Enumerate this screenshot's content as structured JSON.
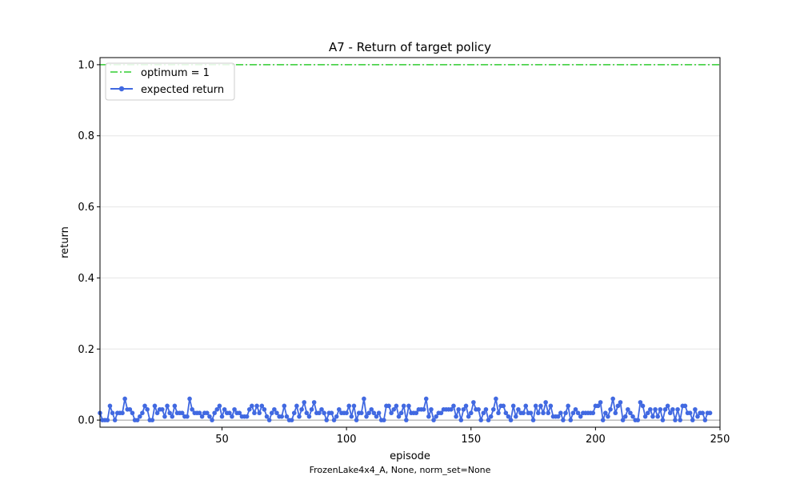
{
  "chart_data": {
    "type": "line",
    "title": "A7 - Return of target policy",
    "xlabel": "episode",
    "ylabel": "return",
    "footer": "FrozenLake4x4_A, None, norm_set=None",
    "xlim": [
      1,
      250
    ],
    "ylim": [
      -0.02,
      1.02
    ],
    "xticks": [
      50,
      100,
      150,
      200,
      250
    ],
    "yticks": [
      0.0,
      0.2,
      0.4,
      0.6,
      0.8,
      1.0
    ],
    "ytick_labels": [
      "0.0",
      "0.2",
      "0.4",
      "0.6",
      "0.8",
      "1.0"
    ],
    "grid": "horizontal",
    "legend_position": "top-left",
    "optimum": {
      "name": "optimum = 1",
      "value": 1.0,
      "color": "#32cd32",
      "style": "dash-dot"
    },
    "series": [
      {
        "name": "expected return",
        "color": "#4169e1",
        "x_start": 1,
        "values": [
          0.02,
          0.0,
          0.0,
          0.0,
          0.04,
          0.02,
          0.0,
          0.02,
          0.02,
          0.02,
          0.06,
          0.03,
          0.03,
          0.02,
          0.0,
          0.0,
          0.01,
          0.02,
          0.04,
          0.03,
          0.0,
          0.0,
          0.04,
          0.02,
          0.03,
          0.03,
          0.01,
          0.04,
          0.02,
          0.01,
          0.04,
          0.02,
          0.02,
          0.02,
          0.01,
          0.01,
          0.06,
          0.03,
          0.02,
          0.02,
          0.02,
          0.01,
          0.02,
          0.02,
          0.01,
          0.0,
          0.02,
          0.03,
          0.04,
          0.01,
          0.03,
          0.02,
          0.02,
          0.01,
          0.03,
          0.02,
          0.02,
          0.01,
          0.01,
          0.01,
          0.03,
          0.04,
          0.02,
          0.04,
          0.02,
          0.04,
          0.03,
          0.01,
          0.0,
          0.02,
          0.03,
          0.02,
          0.01,
          0.01,
          0.04,
          0.01,
          0.0,
          0.0,
          0.02,
          0.04,
          0.01,
          0.03,
          0.05,
          0.02,
          0.01,
          0.03,
          0.05,
          0.02,
          0.02,
          0.03,
          0.02,
          0.0,
          0.02,
          0.02,
          0.0,
          0.01,
          0.03,
          0.02,
          0.02,
          0.02,
          0.04,
          0.01,
          0.04,
          0.0,
          0.02,
          0.02,
          0.06,
          0.01,
          0.02,
          0.03,
          0.02,
          0.01,
          0.02,
          0.0,
          0.0,
          0.04,
          0.04,
          0.02,
          0.03,
          0.04,
          0.01,
          0.02,
          0.04,
          0.0,
          0.04,
          0.02,
          0.02,
          0.02,
          0.03,
          0.03,
          0.03,
          0.06,
          0.01,
          0.03,
          0.0,
          0.01,
          0.02,
          0.02,
          0.03,
          0.03,
          0.03,
          0.03,
          0.04,
          0.01,
          0.03,
          0.0,
          0.03,
          0.04,
          0.01,
          0.02,
          0.05,
          0.03,
          0.03,
          0.0,
          0.02,
          0.03,
          0.0,
          0.01,
          0.03,
          0.06,
          0.02,
          0.04,
          0.04,
          0.02,
          0.01,
          0.0,
          0.04,
          0.01,
          0.03,
          0.02,
          0.02,
          0.04,
          0.02,
          0.02,
          0.0,
          0.04,
          0.02,
          0.04,
          0.02,
          0.05,
          0.02,
          0.04,
          0.01,
          0.01,
          0.01,
          0.02,
          0.0,
          0.02,
          0.04,
          0.0,
          0.02,
          0.03,
          0.02,
          0.01,
          0.02,
          0.02,
          0.02,
          0.02,
          0.02,
          0.04,
          0.04,
          0.05,
          0.0,
          0.02,
          0.01,
          0.03,
          0.06,
          0.02,
          0.04,
          0.05,
          0.0,
          0.01,
          0.03,
          0.02,
          0.01,
          0.0,
          0.0,
          0.05,
          0.04,
          0.01,
          0.02,
          0.03,
          0.01,
          0.03,
          0.01,
          0.03,
          0.0,
          0.03,
          0.04,
          0.02,
          0.03,
          0.0,
          0.03,
          0.0,
          0.04,
          0.04,
          0.02,
          0.02,
          0.0,
          0.03,
          0.01,
          0.02,
          0.02,
          0.0,
          0.02,
          0.02
        ]
      }
    ]
  }
}
